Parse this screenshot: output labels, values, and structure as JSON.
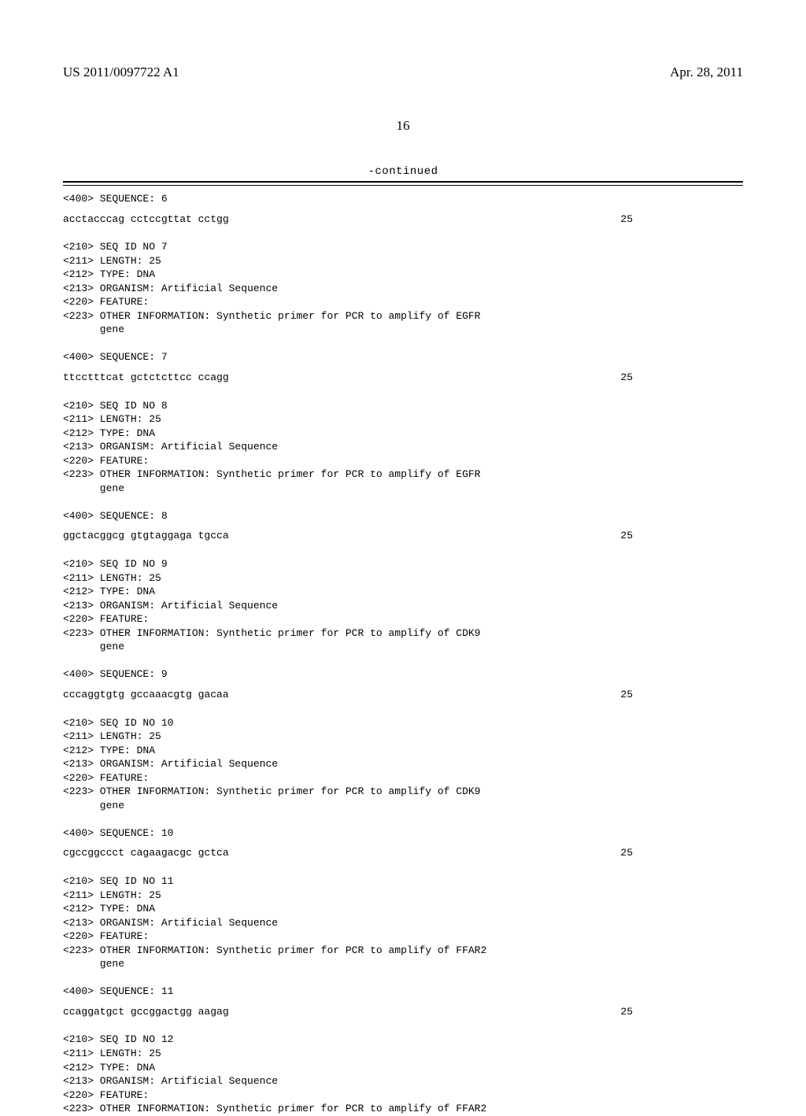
{
  "header": {
    "pub_number": "US 2011/0097722 A1",
    "pub_date": "Apr. 28, 2011"
  },
  "page_number": "16",
  "continued_label": "-continued",
  "sequences": [
    {
      "header_lines": [
        "<400> SEQUENCE: 6"
      ],
      "seq_text": "acctacccag cctccgttat cctgg",
      "seq_len": "25"
    },
    {
      "header_lines": [
        "<210> SEQ ID NO 7",
        "<211> LENGTH: 25",
        "<212> TYPE: DNA",
        "<213> ORGANISM: Artificial Sequence",
        "<220> FEATURE:",
        "<223> OTHER INFORMATION: Synthetic primer for PCR to amplify of EGFR",
        "      gene",
        "",
        "<400> SEQUENCE: 7"
      ],
      "seq_text": "ttcctttcat gctctcttcc ccagg",
      "seq_len": "25"
    },
    {
      "header_lines": [
        "<210> SEQ ID NO 8",
        "<211> LENGTH: 25",
        "<212> TYPE: DNA",
        "<213> ORGANISM: Artificial Sequence",
        "<220> FEATURE:",
        "<223> OTHER INFORMATION: Synthetic primer for PCR to amplify of EGFR",
        "      gene",
        "",
        "<400> SEQUENCE: 8"
      ],
      "seq_text": "ggctacggcg gtgtaggaga tgcca",
      "seq_len": "25"
    },
    {
      "header_lines": [
        "<210> SEQ ID NO 9",
        "<211> LENGTH: 25",
        "<212> TYPE: DNA",
        "<213> ORGANISM: Artificial Sequence",
        "<220> FEATURE:",
        "<223> OTHER INFORMATION: Synthetic primer for PCR to amplify of CDK9",
        "      gene",
        "",
        "<400> SEQUENCE: 9"
      ],
      "seq_text": "cccaggtgtg gccaaacgtg gacaa",
      "seq_len": "25"
    },
    {
      "header_lines": [
        "<210> SEQ ID NO 10",
        "<211> LENGTH: 25",
        "<212> TYPE: DNA",
        "<213> ORGANISM: Artificial Sequence",
        "<220> FEATURE:",
        "<223> OTHER INFORMATION: Synthetic primer for PCR to amplify of CDK9",
        "      gene",
        "",
        "<400> SEQUENCE: 10"
      ],
      "seq_text": "cgccggccct cagaagacgc gctca",
      "seq_len": "25"
    },
    {
      "header_lines": [
        "<210> SEQ ID NO 11",
        "<211> LENGTH: 25",
        "<212> TYPE: DNA",
        "<213> ORGANISM: Artificial Sequence",
        "<220> FEATURE:",
        "<223> OTHER INFORMATION: Synthetic primer for PCR to amplify of FFAR2",
        "      gene",
        "",
        "<400> SEQUENCE: 11"
      ],
      "seq_text": "ccaggatgct gccggactgg aagag",
      "seq_len": "25"
    },
    {
      "header_lines": [
        "<210> SEQ ID NO 12",
        "<211> LENGTH: 25",
        "<212> TYPE: DNA",
        "<213> ORGANISM: Artificial Sequence",
        "<220> FEATURE:",
        "<223> OTHER INFORMATION: Synthetic primer for PCR to amplify of FFAR2"
      ],
      "seq_text": "",
      "seq_len": ""
    }
  ]
}
